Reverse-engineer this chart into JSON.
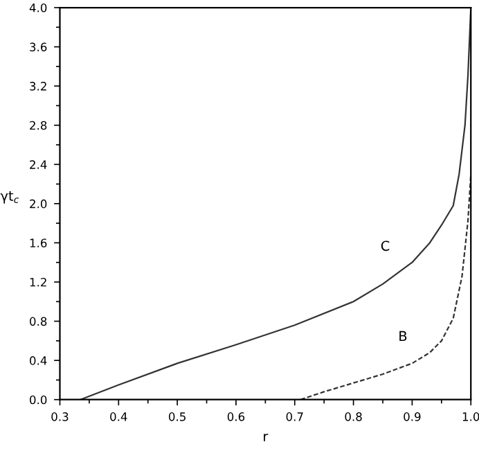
{
  "chart_data": {
    "type": "line",
    "xlabel": "r",
    "ylabel": "γt$_{c}$",
    "xlim": [
      0.3,
      1.0
    ],
    "xticks": [
      0.3,
      0.4,
      0.5,
      0.6,
      0.7,
      0.8,
      0.9,
      {
        "value": 1.0,
        "label": "1.0"
      }
    ],
    "ylim": [
      0.0,
      4.0
    ],
    "yticks": [
      {
        "value": 0,
        "label": "0.0"
      },
      0.4,
      0.8,
      1.2,
      1.6,
      {
        "value": 2,
        "label": "2.0"
      },
      2.4,
      2.8,
      3.2,
      3.6,
      {
        "value": 4,
        "label": "4.0"
      }
    ],
    "grid": false,
    "marker": "none",
    "series": [
      {
        "name": "C",
        "color": "#333333",
        "line_style": "solid",
        "x": [
          0.335,
          0.4,
          0.5,
          0.6,
          0.7,
          0.8,
          0.85,
          0.9,
          0.93,
          0.95,
          0.97,
          0.98,
          0.99,
          0.995,
          1.0
        ],
        "values": [
          0.0,
          0.15,
          0.37,
          0.56,
          0.76,
          1.0,
          1.18,
          1.4,
          1.6,
          1.78,
          1.98,
          2.3,
          2.8,
          3.3,
          4.0
        ]
      },
      {
        "name": "B",
        "color": "#333333",
        "line_style": "dashed",
        "x": [
          0.71,
          0.75,
          0.8,
          0.85,
          0.9,
          0.93,
          0.95,
          0.97,
          0.985,
          0.995,
          1.0
        ],
        "values": [
          0.0,
          0.08,
          0.17,
          0.26,
          0.37,
          0.48,
          0.6,
          0.83,
          1.26,
          1.82,
          2.3
        ]
      }
    ]
  }
}
